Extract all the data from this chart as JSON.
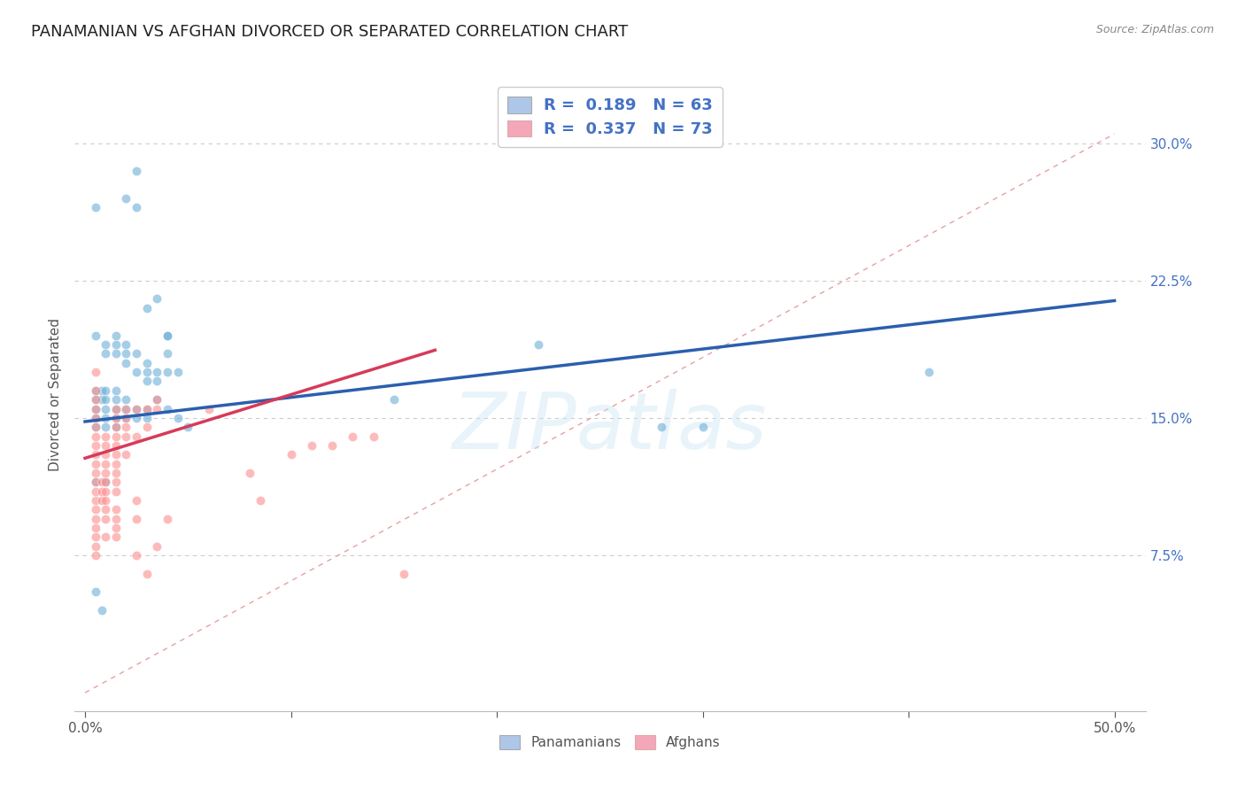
{
  "title": "PANAMANIAN VS AFGHAN DIVORCED OR SEPARATED CORRELATION CHART",
  "source": "Source: ZipAtlas.com",
  "ylabel": "Divorced or Separated",
  "ytick_labels": [
    "7.5%",
    "15.0%",
    "22.5%",
    "30.0%"
  ],
  "ytick_values": [
    0.075,
    0.15,
    0.225,
    0.3
  ],
  "xlim": [
    -0.005,
    0.515
  ],
  "ylim": [
    -0.01,
    0.335
  ],
  "watermark_text": "ZIPatlas",
  "panamanian_color": "#6baed6",
  "afghan_color": "#fc8d8d",
  "scatter_alpha": 0.6,
  "scatter_size": 55,
  "line_blue_color": "#2b5fad",
  "line_pink_color": "#d63b5a",
  "diagonal_color": "#e8a0a0",
  "grid_color": "#cccccc",
  "legend_box_blue": "#aec6e8",
  "legend_box_pink": "#f4a7b9",
  "legend_text_color": "#4472c4",
  "legend_label_color": "#333333",
  "panamanian_points": [
    [
      0.005,
      0.265
    ],
    [
      0.02,
      0.27
    ],
    [
      0.025,
      0.285
    ],
    [
      0.025,
      0.265
    ],
    [
      0.03,
      0.21
    ],
    [
      0.035,
      0.215
    ],
    [
      0.04,
      0.195
    ],
    [
      0.04,
      0.185
    ],
    [
      0.04,
      0.195
    ],
    [
      0.005,
      0.195
    ],
    [
      0.01,
      0.19
    ],
    [
      0.01,
      0.185
    ],
    [
      0.015,
      0.195
    ],
    [
      0.015,
      0.19
    ],
    [
      0.015,
      0.185
    ],
    [
      0.02,
      0.19
    ],
    [
      0.02,
      0.185
    ],
    [
      0.02,
      0.18
    ],
    [
      0.025,
      0.185
    ],
    [
      0.025,
      0.175
    ],
    [
      0.03,
      0.18
    ],
    [
      0.03,
      0.175
    ],
    [
      0.03,
      0.17
    ],
    [
      0.035,
      0.175
    ],
    [
      0.035,
      0.17
    ],
    [
      0.04,
      0.175
    ],
    [
      0.045,
      0.175
    ],
    [
      0.005,
      0.165
    ],
    [
      0.005,
      0.16
    ],
    [
      0.005,
      0.155
    ],
    [
      0.005,
      0.15
    ],
    [
      0.005,
      0.145
    ],
    [
      0.008,
      0.165
    ],
    [
      0.008,
      0.16
    ],
    [
      0.01,
      0.165
    ],
    [
      0.01,
      0.16
    ],
    [
      0.01,
      0.155
    ],
    [
      0.01,
      0.15
    ],
    [
      0.01,
      0.145
    ],
    [
      0.015,
      0.165
    ],
    [
      0.015,
      0.16
    ],
    [
      0.015,
      0.155
    ],
    [
      0.015,
      0.15
    ],
    [
      0.015,
      0.145
    ],
    [
      0.02,
      0.16
    ],
    [
      0.02,
      0.155
    ],
    [
      0.02,
      0.15
    ],
    [
      0.025,
      0.155
    ],
    [
      0.025,
      0.15
    ],
    [
      0.03,
      0.155
    ],
    [
      0.03,
      0.15
    ],
    [
      0.035,
      0.16
    ],
    [
      0.04,
      0.155
    ],
    [
      0.045,
      0.15
    ],
    [
      0.05,
      0.145
    ],
    [
      0.005,
      0.115
    ],
    [
      0.01,
      0.115
    ],
    [
      0.15,
      0.16
    ],
    [
      0.22,
      0.19
    ],
    [
      0.28,
      0.145
    ],
    [
      0.3,
      0.145
    ],
    [
      0.41,
      0.175
    ],
    [
      0.005,
      0.055
    ],
    [
      0.008,
      0.045
    ]
  ],
  "afghan_points": [
    [
      0.005,
      0.175
    ],
    [
      0.005,
      0.165
    ],
    [
      0.005,
      0.16
    ],
    [
      0.005,
      0.155
    ],
    [
      0.005,
      0.15
    ],
    [
      0.005,
      0.145
    ],
    [
      0.005,
      0.14
    ],
    [
      0.005,
      0.135
    ],
    [
      0.005,
      0.13
    ],
    [
      0.005,
      0.125
    ],
    [
      0.005,
      0.12
    ],
    [
      0.005,
      0.115
    ],
    [
      0.005,
      0.11
    ],
    [
      0.005,
      0.105
    ],
    [
      0.005,
      0.1
    ],
    [
      0.005,
      0.095
    ],
    [
      0.005,
      0.09
    ],
    [
      0.005,
      0.085
    ],
    [
      0.005,
      0.08
    ],
    [
      0.005,
      0.075
    ],
    [
      0.008,
      0.115
    ],
    [
      0.008,
      0.11
    ],
    [
      0.008,
      0.105
    ],
    [
      0.01,
      0.14
    ],
    [
      0.01,
      0.135
    ],
    [
      0.01,
      0.13
    ],
    [
      0.01,
      0.125
    ],
    [
      0.01,
      0.12
    ],
    [
      0.01,
      0.115
    ],
    [
      0.01,
      0.11
    ],
    [
      0.01,
      0.105
    ],
    [
      0.01,
      0.1
    ],
    [
      0.01,
      0.095
    ],
    [
      0.01,
      0.085
    ],
    [
      0.015,
      0.155
    ],
    [
      0.015,
      0.15
    ],
    [
      0.015,
      0.145
    ],
    [
      0.015,
      0.14
    ],
    [
      0.015,
      0.135
    ],
    [
      0.015,
      0.13
    ],
    [
      0.015,
      0.125
    ],
    [
      0.015,
      0.12
    ],
    [
      0.015,
      0.115
    ],
    [
      0.015,
      0.11
    ],
    [
      0.015,
      0.1
    ],
    [
      0.015,
      0.095
    ],
    [
      0.015,
      0.09
    ],
    [
      0.015,
      0.085
    ],
    [
      0.02,
      0.155
    ],
    [
      0.02,
      0.15
    ],
    [
      0.02,
      0.145
    ],
    [
      0.02,
      0.14
    ],
    [
      0.02,
      0.13
    ],
    [
      0.025,
      0.155
    ],
    [
      0.025,
      0.14
    ],
    [
      0.025,
      0.105
    ],
    [
      0.025,
      0.095
    ],
    [
      0.03,
      0.155
    ],
    [
      0.03,
      0.145
    ],
    [
      0.035,
      0.16
    ],
    [
      0.035,
      0.155
    ],
    [
      0.04,
      0.095
    ],
    [
      0.06,
      0.155
    ],
    [
      0.08,
      0.12
    ],
    [
      0.085,
      0.105
    ],
    [
      0.1,
      0.13
    ],
    [
      0.11,
      0.135
    ],
    [
      0.12,
      0.135
    ],
    [
      0.13,
      0.14
    ],
    [
      0.14,
      0.14
    ],
    [
      0.155,
      0.065
    ],
    [
      0.025,
      0.075
    ],
    [
      0.03,
      0.065
    ],
    [
      0.035,
      0.08
    ]
  ],
  "pan_line_x": [
    0.0,
    0.5
  ],
  "pan_line_y": [
    0.148,
    0.214
  ],
  "afg_line_x": [
    0.0,
    0.17
  ],
  "afg_line_y": [
    0.128,
    0.187
  ],
  "diag_line_x": [
    0.0,
    0.5
  ],
  "diag_line_y": [
    0.0,
    0.305
  ]
}
